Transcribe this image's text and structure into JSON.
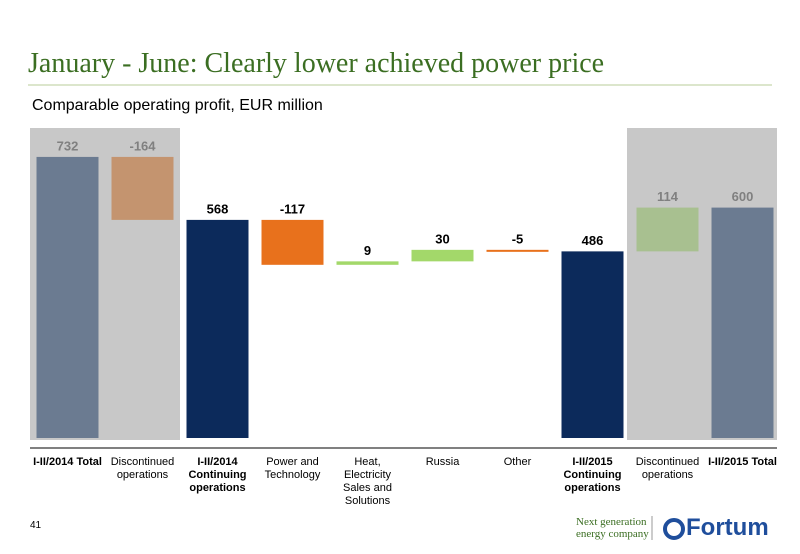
{
  "slide": {
    "title": "January - June: Clearly lower achieved power price",
    "page_number": "41",
    "tagline": "Next generation energy company",
    "logo": "Fortum"
  },
  "chart_data": {
    "type": "waterfall",
    "title": "Comparable operating profit, EUR million",
    "categories": [
      "I-II/2014 Total",
      "Discontinued operations",
      "I-II/2014 Continuing operations",
      "Power and Technology",
      "Heat, Electricity Sales and Solutions",
      "Russia",
      "Other",
      "I-II/2015 Continuing operations",
      "Discontinued operations",
      "I-II/2015 Total"
    ],
    "values": [
      732,
      -164,
      568,
      -117,
      9,
      30,
      -5,
      486,
      114,
      600
    ],
    "kinds": [
      "total",
      "delta",
      "total",
      "delta",
      "delta",
      "delta",
      "delta",
      "total",
      "delta",
      "total"
    ],
    "colors": [
      "#6b7b91",
      "#c4946f",
      "#0c2a5b",
      "#e8711c",
      "#a3d86a",
      "#a3d86a",
      "#e8711c",
      "#0c2a5b",
      "#a8c090",
      "#6b7b91"
    ],
    "value_label_colors": [
      "#808080",
      "#808080",
      "#000000",
      "#000000",
      "#000000",
      "#000000",
      "#000000",
      "#000000",
      "#808080",
      "#808080"
    ]
  }
}
